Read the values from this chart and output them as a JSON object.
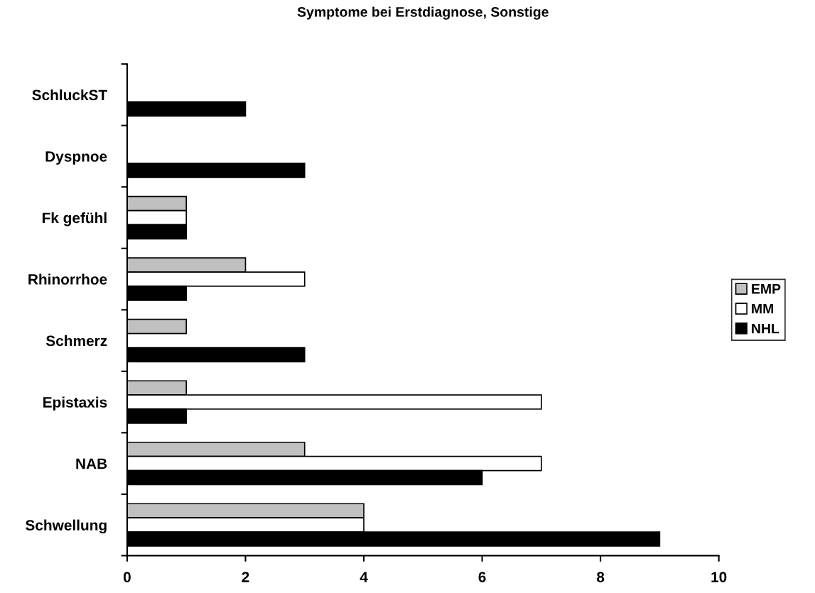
{
  "chart_data": {
    "type": "bar",
    "orientation": "horizontal",
    "title": "Symptome bei Erstdiagnose, Sonstige",
    "categories": [
      "SchluckST",
      "Dyspnoe",
      "Fk gefühl",
      "Rhinorrhoe",
      "Schmerz",
      "Epistaxis",
      "NAB",
      "Schwellung"
    ],
    "series": [
      {
        "name": "EMP",
        "color": "#c0c0c0",
        "values": [
          null,
          null,
          1,
          2,
          1,
          1,
          3,
          4
        ]
      },
      {
        "name": "MM",
        "color": "#ffffff",
        "values": [
          null,
          null,
          1,
          3,
          null,
          7,
          7,
          4
        ]
      },
      {
        "name": "NHL",
        "color": "#000000",
        "values": [
          2,
          3,
          1,
          1,
          3,
          1,
          6,
          9
        ]
      }
    ],
    "xlim": [
      0,
      10
    ],
    "xticks": [
      0,
      2,
      4,
      6,
      8,
      10
    ],
    "grid": false,
    "legend": "right"
  }
}
